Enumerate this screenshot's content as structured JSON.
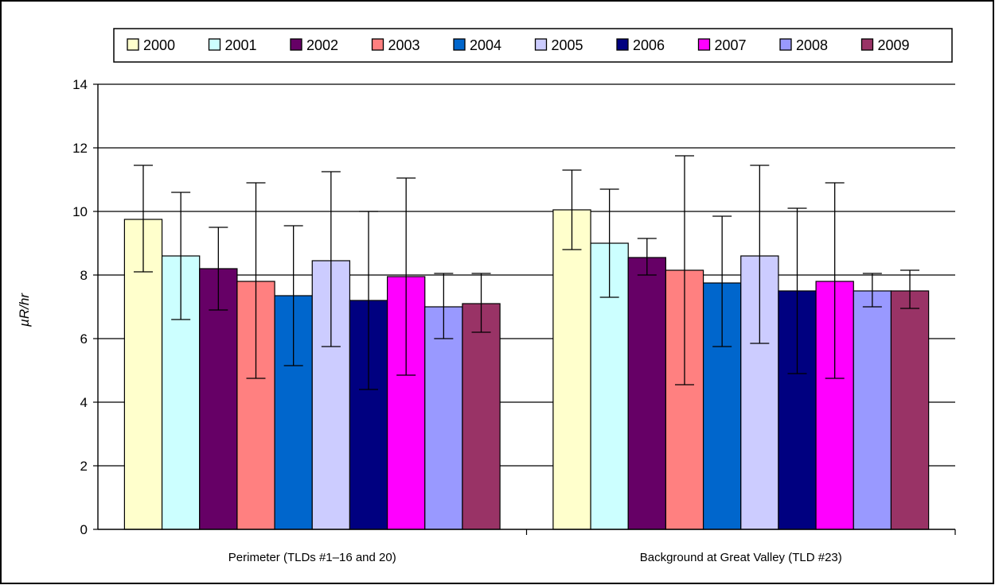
{
  "chart_data": {
    "type": "bar",
    "title": "",
    "xlabel": "",
    "ylabel": "µR/hr",
    "ylim": [
      0,
      14
    ],
    "yticks": [
      0,
      2,
      4,
      6,
      8,
      10,
      12,
      14
    ],
    "grid": true,
    "legend": "top",
    "categories": [
      "Perimeter (TLDs #1–16 and 20)",
      "Background at Great Valley (TLD #23)"
    ],
    "series": [
      {
        "name": "2000",
        "color": "#FFFFCC",
        "values": [
          9.75,
          10.05
        ],
        "err_low": [
          8.1,
          8.8
        ],
        "err_high": [
          11.45,
          11.3
        ]
      },
      {
        "name": "2001",
        "color": "#CCFFFF",
        "values": [
          8.6,
          9.0
        ],
        "err_low": [
          6.6,
          7.3
        ],
        "err_high": [
          10.6,
          10.7
        ]
      },
      {
        "name": "2002",
        "color": "#660066",
        "values": [
          8.2,
          8.55
        ],
        "err_low": [
          6.9,
          8.0
        ],
        "err_high": [
          9.5,
          9.15
        ]
      },
      {
        "name": "2003",
        "color": "#FF8080",
        "values": [
          7.8,
          8.15
        ],
        "err_low": [
          4.75,
          4.55
        ],
        "err_high": [
          10.9,
          11.75
        ]
      },
      {
        "name": "2004",
        "color": "#0066CC",
        "values": [
          7.35,
          7.75
        ],
        "err_low": [
          5.15,
          5.75
        ],
        "err_high": [
          9.55,
          9.85
        ]
      },
      {
        "name": "2005",
        "color": "#CCCCFF",
        "values": [
          8.45,
          8.6
        ],
        "err_low": [
          5.75,
          5.85
        ],
        "err_high": [
          11.25,
          11.45
        ]
      },
      {
        "name": "2006",
        "color": "#000080",
        "values": [
          7.2,
          7.5
        ],
        "err_low": [
          4.4,
          4.9
        ],
        "err_high": [
          10.0,
          10.1
        ]
      },
      {
        "name": "2007",
        "color": "#FF00FF",
        "values": [
          7.95,
          7.8
        ],
        "err_low": [
          4.85,
          4.75
        ],
        "err_high": [
          11.05,
          10.9
        ]
      },
      {
        "name": "2008",
        "color": "#9999FF",
        "values": [
          7.0,
          7.5
        ],
        "err_low": [
          6.0,
          7.0
        ],
        "err_high": [
          8.05,
          8.05
        ]
      },
      {
        "name": "2009",
        "color": "#993366",
        "values": [
          7.1,
          7.5
        ],
        "err_low": [
          6.2,
          6.95
        ],
        "err_high": [
          8.05,
          8.15
        ]
      }
    ]
  }
}
